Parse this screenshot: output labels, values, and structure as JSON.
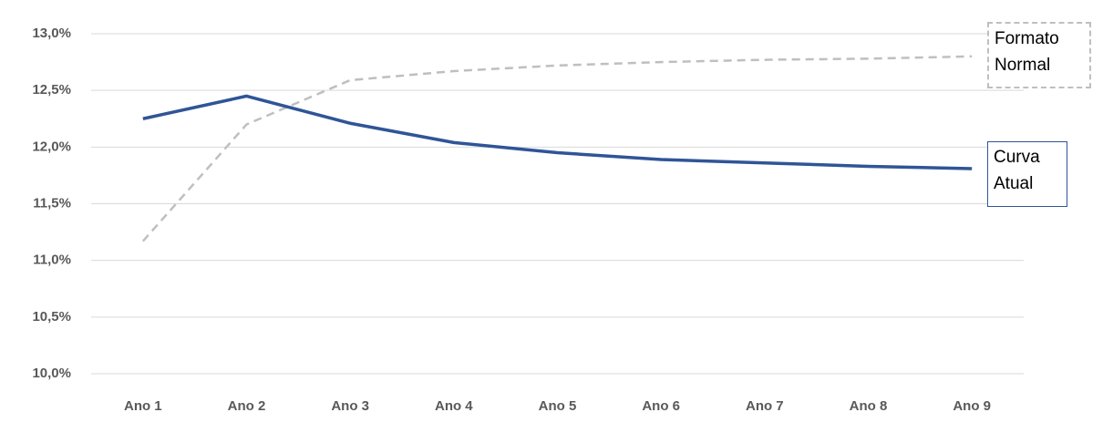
{
  "chart_data": {
    "type": "line",
    "categories": [
      "Ano 1",
      "Ano 2",
      "Ano 3",
      "Ano 4",
      "Ano 5",
      "Ano 6",
      "Ano 7",
      "Ano 8",
      "Ano 9"
    ],
    "series": [
      {
        "name": "Formato Normal",
        "color": "#bfbfbf",
        "dashed": true,
        "values": [
          11.17,
          12.2,
          12.59,
          12.67,
          12.72,
          12.75,
          12.77,
          12.78,
          12.8
        ]
      },
      {
        "name": "Curva Atual",
        "color": "#2f5597",
        "dashed": false,
        "values": [
          12.25,
          12.45,
          12.21,
          12.04,
          11.95,
          11.89,
          11.86,
          11.83,
          11.81
        ]
      }
    ],
    "ylim": [
      10,
      13
    ],
    "yticks": [
      {
        "value": 10,
        "label": "10,0%"
      },
      {
        "value": 10.5,
        "label": "10,5%"
      },
      {
        "value": 11,
        "label": "11,0%"
      },
      {
        "value": 11.5,
        "label": "11,5%"
      },
      {
        "value": 12,
        "label": "12,0%"
      },
      {
        "value": 12.5,
        "label": "12,5%"
      },
      {
        "value": 13,
        "label": "13,0%"
      }
    ],
    "grid": true
  }
}
